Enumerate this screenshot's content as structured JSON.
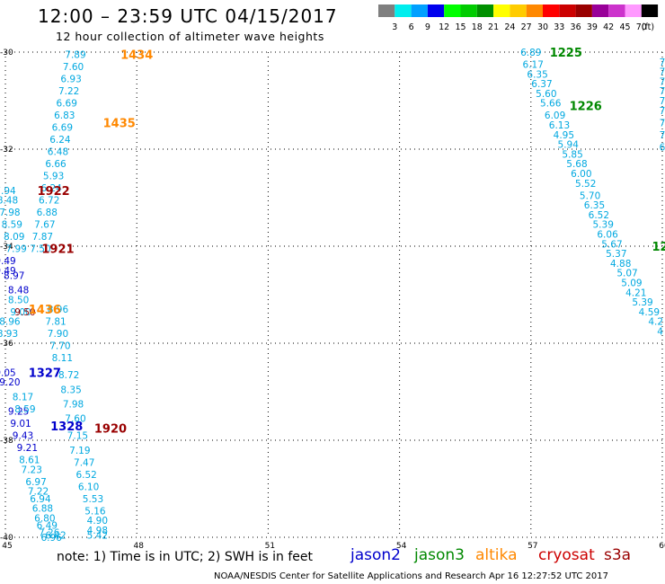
{
  "title": "12:00 – 23:59 UTC 04/15/2017",
  "subtitle": "12 hour collection of altimeter wave heights",
  "colorbar": {
    "bins": [
      {
        "color": "#7f7f7f",
        "label": "3"
      },
      {
        "color": "#00eeee",
        "label": "6"
      },
      {
        "color": "#00a0ff",
        "label": "9"
      },
      {
        "color": "#0000ee",
        "label": "12"
      },
      {
        "color": "#00ff00",
        "label": "15"
      },
      {
        "color": "#00cc00",
        "label": "18"
      },
      {
        "color": "#009000",
        "label": "21"
      },
      {
        "color": "#ffff00",
        "label": "24"
      },
      {
        "color": "#ffcc00",
        "label": "27"
      },
      {
        "color": "#ff8800",
        "label": "30"
      },
      {
        "color": "#ff0000",
        "label": "33"
      },
      {
        "color": "#cc0000",
        "label": "36"
      },
      {
        "color": "#990000",
        "label": "39"
      },
      {
        "color": "#990099",
        "label": "42"
      },
      {
        "color": "#cc33cc",
        "label": "45"
      },
      {
        "color": "#ff99ff",
        "label": "70"
      },
      {
        "color": "#000000",
        "label": ""
      }
    ],
    "unit": "(ft)"
  },
  "axes": {
    "x_ticks": [
      "45",
      "48",
      "51",
      "54",
      "57",
      "60"
    ],
    "y_ticks": [
      "-30",
      "-32",
      "-34",
      "-36",
      "-38",
      "-40"
    ],
    "lon_range": [
      45,
      60
    ],
    "lat_range": [
      -40,
      -30
    ]
  },
  "satellites": [
    {
      "name": "jason2",
      "color": "#0000cc"
    },
    {
      "name": "jason3",
      "color": "#008800"
    },
    {
      "name": "altika",
      "color": "#ff8800"
    },
    {
      "name": "cryosat",
      "color": "#cc0000"
    },
    {
      "name": "s3a",
      "color": "#990000"
    }
  ],
  "note": "note:  1) Time is in UTC;  2) SWH is in feet",
  "credit": "NOAA/NESDIS Center for Satellite Applications and Research    Apr 16 12:27:52 UTC 2017",
  "chart_data": {
    "type": "scatter",
    "title": "12:00 – 23:59 UTC 04/15/2017",
    "subtitle": "12 hour collection of altimeter wave heights",
    "xlim": [
      45,
      60
    ],
    "ylim": [
      -40,
      -30
    ],
    "grid": true,
    "time_labels": [
      {
        "text": "1434",
        "lon": 48.0,
        "lat": -30.05,
        "color": "#ff8800"
      },
      {
        "text": "1435",
        "lon": 47.6,
        "lat": -31.45,
        "color": "#ff8800"
      },
      {
        "text": "1922",
        "lon": 46.1,
        "lat": -32.85,
        "color": "#990000"
      },
      {
        "text": "1921",
        "lon": 46.2,
        "lat": -34.05,
        "color": "#990000"
      },
      {
        "text": "1436",
        "lon": 45.9,
        "lat": -35.3,
        "color": "#ff8800"
      },
      {
        "text": "1327",
        "lon": 45.9,
        "lat": -36.6,
        "color": "#0000cc"
      },
      {
        "text": "1328",
        "lon": 46.4,
        "lat": -37.7,
        "color": "#0000cc"
      },
      {
        "text": "1920",
        "lon": 47.4,
        "lat": -37.75,
        "color": "#990000"
      },
      {
        "text": "1225",
        "lon": 57.8,
        "lat": -30.0,
        "color": "#008800"
      },
      {
        "text": "1226",
        "lon": 58.25,
        "lat": -31.1,
        "color": "#008800"
      },
      {
        "text": "12",
        "lon": 59.95,
        "lat": -34.0,
        "color": "#008800"
      }
    ],
    "series": [
      {
        "name": "altika",
        "color": "#00a8e0",
        "points": [
          {
            "lon": 46.6,
            "lat": -30.05,
            "swh": "7.89"
          },
          {
            "lon": 46.55,
            "lat": -30.3,
            "swh": "7.60"
          },
          {
            "lon": 46.5,
            "lat": -30.55,
            "swh": "6.93"
          },
          {
            "lon": 46.45,
            "lat": -30.8,
            "swh": "7.22"
          },
          {
            "lon": 46.4,
            "lat": -31.05,
            "swh": "6.69"
          },
          {
            "lon": 46.35,
            "lat": -31.3,
            "swh": "6.83"
          },
          {
            "lon": 46.3,
            "lat": -31.55,
            "swh": "6.69"
          },
          {
            "lon": 46.25,
            "lat": -31.8,
            "swh": "6.24"
          },
          {
            "lon": 46.2,
            "lat": -32.05,
            "swh": "6.48"
          },
          {
            "lon": 46.15,
            "lat": -32.3,
            "swh": "6.66"
          },
          {
            "lon": 46.1,
            "lat": -32.55,
            "swh": "5.93"
          },
          {
            "lon": 46.05,
            "lat": -32.8,
            "swh": "6.24"
          },
          {
            "lon": 46.0,
            "lat": -33.05,
            "swh": "6.72"
          },
          {
            "lon": 45.95,
            "lat": -33.3,
            "swh": "6.88"
          },
          {
            "lon": 45.9,
            "lat": -33.55,
            "swh": "7.67"
          },
          {
            "lon": 45.85,
            "lat": -33.8,
            "swh": "7.87"
          },
          {
            "lon": 45.8,
            "lat": -34.05,
            "swh": "7.50"
          }
        ]
      },
      {
        "name": "altika (2)",
        "color": "#00a8e0",
        "points": [
          {
            "lon": 46.2,
            "lat": -35.3,
            "swh": "8.96"
          },
          {
            "lon": 46.15,
            "lat": -35.55,
            "swh": "7.81"
          },
          {
            "lon": 46.2,
            "lat": -35.8,
            "swh": "7.90"
          },
          {
            "lon": 46.25,
            "lat": -36.05,
            "swh": "7.70"
          },
          {
            "lon": 46.3,
            "lat": -36.3,
            "swh": "8.11"
          },
          {
            "lon": 46.45,
            "lat": -36.65,
            "swh": "8.72"
          },
          {
            "lon": 46.5,
            "lat": -36.95,
            "swh": "8.35"
          },
          {
            "lon": 46.55,
            "lat": -37.25,
            "swh": "7.98"
          },
          {
            "lon": 46.6,
            "lat": -37.55,
            "swh": "7.60"
          },
          {
            "lon": 46.65,
            "lat": -37.9,
            "swh": "7.15"
          },
          {
            "lon": 46.7,
            "lat": -38.2,
            "swh": "7.19"
          },
          {
            "lon": 46.8,
            "lat": -38.45,
            "swh": "7.47"
          },
          {
            "lon": 46.85,
            "lat": -38.7,
            "swh": "6.52"
          },
          {
            "lon": 46.9,
            "lat": -38.95,
            "swh": "6.10"
          },
          {
            "lon": 47.0,
            "lat": -39.2,
            "swh": "5.53"
          },
          {
            "lon": 47.05,
            "lat": -39.45,
            "swh": "5.16"
          },
          {
            "lon": 47.1,
            "lat": -39.65,
            "swh": "4.90"
          },
          {
            "lon": 47.1,
            "lat": -39.85,
            "swh": "4.98"
          },
          {
            "lon": 47.1,
            "lat": -39.95,
            "swh": "5.42"
          }
        ]
      },
      {
        "name": "jason2",
        "color": "#0000cc",
        "points": [
          {
            "lon": 45.0,
            "lat": -34.3,
            "swh": "9.49"
          },
          {
            "lon": 45.0,
            "lat": -34.5,
            "swh": "9.49"
          },
          {
            "lon": 45.2,
            "lat": -34.6,
            "swh": "8.97"
          },
          {
            "lon": 45.3,
            "lat": -34.9,
            "swh": "8.48"
          },
          {
            "lon": 45.0,
            "lat": -36.6,
            "swh": "9.05"
          },
          {
            "lon": 45.1,
            "lat": -36.8,
            "swh": "9.20"
          },
          {
            "lon": 45.3,
            "lat": -37.4,
            "swh": "9.25"
          },
          {
            "lon": 45.35,
            "lat": -37.65,
            "swh": "9.01"
          },
          {
            "lon": 45.4,
            "lat": -37.9,
            "swh": "9.43"
          },
          {
            "lon": 45.5,
            "lat": -38.15,
            "swh": "9.21"
          }
        ]
      },
      {
        "name": "cryosat",
        "color": "#00a8e0",
        "points": [
          {
            "lon": 45.0,
            "lat": -32.85,
            "swh": "7.94"
          },
          {
            "lon": 45.05,
            "lat": -33.05,
            "swh": "8.48"
          },
          {
            "lon": 45.1,
            "lat": -33.3,
            "swh": "7.98"
          },
          {
            "lon": 45.15,
            "lat": -33.55,
            "swh": "8.59"
          },
          {
            "lon": 45.2,
            "lat": -33.8,
            "swh": "8.09"
          },
          {
            "lon": 45.25,
            "lat": -34.05,
            "swh": "7.99"
          },
          {
            "lon": 45.3,
            "lat": -35.1,
            "swh": "8.50"
          },
          {
            "lon": 45.35,
            "lat": -35.35,
            "swh": "9.00"
          },
          {
            "lon": 45.1,
            "lat": -35.55,
            "swh": "8.96"
          },
          {
            "lon": 45.05,
            "lat": -35.8,
            "swh": "8.93"
          },
          {
            "lon": 45.4,
            "lat": -37.1,
            "swh": "8.17"
          },
          {
            "lon": 45.45,
            "lat": -37.35,
            "swh": "8.59"
          },
          {
            "lon": 45.55,
            "lat": -38.4,
            "swh": "8.61"
          },
          {
            "lon": 45.6,
            "lat": -38.6,
            "swh": "7.23"
          },
          {
            "lon": 45.7,
            "lat": -38.85,
            "swh": "6.97"
          },
          {
            "lon": 45.75,
            "lat": -39.05,
            "swh": "7.22"
          },
          {
            "lon": 45.8,
            "lat": -39.2,
            "swh": "6.94"
          },
          {
            "lon": 45.85,
            "lat": -39.4,
            "swh": "6.88"
          },
          {
            "lon": 45.9,
            "lat": -39.6,
            "swh": "6.80"
          },
          {
            "lon": 45.95,
            "lat": -39.75,
            "swh": "6.49"
          },
          {
            "lon": 46.0,
            "lat": -39.9,
            "swh": "7.26"
          },
          {
            "lon": 46.05,
            "lat": -40.0,
            "swh": "6.96"
          },
          {
            "lon": 46.15,
            "lat": -39.95,
            "swh": "6.42"
          }
        ]
      },
      {
        "name": "s3a",
        "color": "#990000",
        "points": [
          {
            "lon": 45.45,
            "lat": -35.35,
            "swh": "9.50"
          }
        ]
      },
      {
        "name": "jason3",
        "color": "#00a8e0",
        "points": [
          {
            "lon": 57.0,
            "lat": -30.0,
            "swh": "6.89"
          },
          {
            "lon": 57.05,
            "lat": -30.25,
            "swh": "6.17"
          },
          {
            "lon": 57.15,
            "lat": -30.45,
            "swh": "6.35"
          },
          {
            "lon": 57.25,
            "lat": -30.65,
            "swh": "6.37"
          },
          {
            "lon": 57.35,
            "lat": -30.85,
            "swh": "5.60"
          },
          {
            "lon": 57.45,
            "lat": -31.05,
            "swh": "5.66"
          },
          {
            "lon": 57.55,
            "lat": -31.3,
            "swh": "6.09"
          },
          {
            "lon": 57.65,
            "lat": -31.5,
            "swh": "6.13"
          },
          {
            "lon": 57.75,
            "lat": -31.7,
            "swh": "4.95"
          },
          {
            "lon": 57.85,
            "lat": -31.9,
            "swh": "5.94"
          },
          {
            "lon": 57.95,
            "lat": -32.1,
            "swh": "5.85"
          },
          {
            "lon": 58.05,
            "lat": -32.3,
            "swh": "5.68"
          },
          {
            "lon": 58.15,
            "lat": -32.5,
            "swh": "6.00"
          },
          {
            "lon": 58.25,
            "lat": -32.7,
            "swh": "5.52"
          },
          {
            "lon": 58.35,
            "lat": -32.95,
            "swh": "5.70"
          },
          {
            "lon": 58.45,
            "lat": -33.15,
            "swh": "6.35"
          },
          {
            "lon": 58.55,
            "lat": -33.35,
            "swh": "6.52"
          },
          {
            "lon": 58.65,
            "lat": -33.55,
            "swh": "5.39"
          },
          {
            "lon": 58.75,
            "lat": -33.75,
            "swh": "6.06"
          },
          {
            "lon": 58.85,
            "lat": -33.95,
            "swh": "5.67"
          },
          {
            "lon": 58.95,
            "lat": -34.15,
            "swh": "5.37"
          },
          {
            "lon": 59.05,
            "lat": -34.35,
            "swh": "4.88"
          },
          {
            "lon": 59.2,
            "lat": -34.55,
            "swh": "5.07"
          },
          {
            "lon": 59.3,
            "lat": -34.75,
            "swh": "5.09"
          },
          {
            "lon": 59.4,
            "lat": -34.95,
            "swh": "4.21"
          },
          {
            "lon": 59.55,
            "lat": -35.15,
            "swh": "5.39"
          },
          {
            "lon": 59.7,
            "lat": -35.35,
            "swh": "4.59"
          },
          {
            "lon": 59.85,
            "lat": -35.55,
            "swh": "4.2"
          },
          {
            "lon": 59.95,
            "lat": -35.75,
            "swh": "4"
          }
        ]
      },
      {
        "name": "jason3 (edge)",
        "color": "#00a8e0",
        "points": [
          {
            "lon": 60.0,
            "lat": -30.2,
            "swh": "7"
          },
          {
            "lon": 60.0,
            "lat": -30.4,
            "swh": "7"
          },
          {
            "lon": 60.0,
            "lat": -30.6,
            "swh": "7"
          },
          {
            "lon": 60.0,
            "lat": -30.8,
            "swh": "7"
          },
          {
            "lon": 60.0,
            "lat": -31.0,
            "swh": "7"
          },
          {
            "lon": 60.0,
            "lat": -31.2,
            "swh": "7"
          },
          {
            "lon": 60.0,
            "lat": -31.45,
            "swh": "7"
          },
          {
            "lon": 60.0,
            "lat": -31.7,
            "swh": "7"
          },
          {
            "lon": 60.0,
            "lat": -31.95,
            "swh": "6"
          }
        ]
      }
    ]
  }
}
